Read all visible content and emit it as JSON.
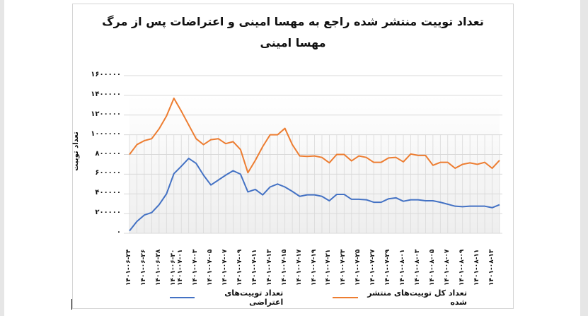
{
  "chart_data": {
    "type": "line",
    "title": "تعداد توییت منتشر شده راجع به مهسا امینی و اعتراضات پس از مرگ مهسا امینی",
    "title_lines": [
      "تعداد توییت منتشر شده راجع به مهسا امینی و اعتراضات پس از مرگ",
      "مهسا امینی"
    ],
    "xlabel": "",
    "ylabel": "تعداد توییت",
    "ylim": [
      0,
      1600000
    ],
    "y_ticks": [
      "۰",
      "۲۰۰۰۰۰",
      "۴۰۰۰۰۰",
      "۶۰۰۰۰۰",
      "۸۰۰۰۰۰",
      "۱۰۰۰۰۰۰",
      "۱۲۰۰۰۰۰",
      "۱۴۰۰۰۰۰",
      "۱۶۰۰۰۰۰"
    ],
    "y_tick_values": [
      0,
      200000,
      400000,
      600000,
      800000,
      1000000,
      1200000,
      1400000,
      1600000
    ],
    "x_tick_labels": [
      "۱۴۰۱-۰۶-۲۴",
      "۱۴۰۱-۰۶-۲۶",
      "۱۴۰۱-۰۶-۲۸",
      "۱۴۰۱-۰۶-۳۰",
      "۱۴۰۱-۰۷-۰۱",
      "۱۴۰۱-۰۷-۰۳",
      "۱۴۰۱-۰۷-۰۵",
      "۱۴۰۱-۰۷-۰۷",
      "۱۴۰۱-۰۷-۰۹",
      "۱۴۰۱-۰۷-۱۱",
      "۱۴۰۱-۰۷-۱۳",
      "۱۴۰۱-۰۷-۱۵",
      "۱۴۰۱-۰۷-۱۷",
      "۱۴۰۱-۰۷-۱۹",
      "۱۴۰۱-۰۷-۲۱",
      "۱۴۰۱-۰۷-۲۳",
      "۱۴۰۱-۰۷-۲۵",
      "۱۴۰۱-۰۷-۲۷",
      "۱۴۰۱-۰۷-۲۹",
      "۱۴۰۱-۰۸-۰۱",
      "۱۴۰۱-۰۸-۰۳",
      "۱۴۰۱-۰۸-۰۵",
      "۱۴۰۱-۰۸-۰۷",
      "۱۴۰۱-۰۸-۰۹",
      "۱۴۰۱-۰۸-۱۱",
      "۱۴۰۱-۰۸-۱۳"
    ],
    "x_tick_indices": [
      0,
      2,
      4,
      6,
      7,
      9,
      11,
      13,
      15,
      17,
      19,
      21,
      23,
      25,
      27,
      29,
      31,
      33,
      35,
      37,
      39,
      41,
      43,
      45,
      47,
      49
    ],
    "x": [
      "1401-06-24",
      "1401-06-25",
      "1401-06-26",
      "1401-06-27",
      "1401-06-28",
      "1401-06-29",
      "1401-06-30",
      "1401-06-31",
      "1401-07-01",
      "1401-07-02",
      "1401-07-03",
      "1401-07-04",
      "1401-07-05",
      "1401-07-06",
      "1401-07-07",
      "1401-07-08",
      "1401-07-09",
      "1401-07-10",
      "1401-07-11",
      "1401-07-12",
      "1401-07-13",
      "1401-07-14",
      "1401-07-15",
      "1401-07-16",
      "1401-07-17",
      "1401-07-18",
      "1401-07-19",
      "1401-07-20",
      "1401-07-21",
      "1401-07-22",
      "1401-07-23",
      "1401-07-24",
      "1401-07-25",
      "1401-07-26",
      "1401-07-27",
      "1401-07-28",
      "1401-07-29",
      "1401-07-30",
      "1401-08-01",
      "1401-08-02",
      "1401-08-03",
      "1401-08-04",
      "1401-08-05",
      "1401-08-06",
      "1401-08-07",
      "1401-08-08",
      "1401-08-09",
      "1401-08-10",
      "1401-08-11",
      "1401-08-12",
      "1401-08-13"
    ],
    "series": [
      {
        "name": "تعداد کل توییت‌های منتشر شده",
        "color": "#ed7d31",
        "values": [
          800000,
          900000,
          940000,
          960000,
          1060000,
          1190000,
          1370000,
          1240000,
          1100000,
          960000,
          900000,
          950000,
          960000,
          910000,
          930000,
          850000,
          615000,
          740000,
          880000,
          1000000,
          1000000,
          1065000,
          900000,
          785000,
          780000,
          785000,
          770000,
          715000,
          800000,
          800000,
          735000,
          785000,
          770000,
          720000,
          720000,
          765000,
          770000,
          725000,
          805000,
          790000,
          790000,
          690000,
          720000,
          720000,
          660000,
          700000,
          715000,
          700000,
          720000,
          660000,
          740000
        ]
      },
      {
        "name": "تعداد توییت‌های اعتراضی",
        "color": "#4472c4",
        "values": [
          25000,
          120000,
          185000,
          210000,
          290000,
          400000,
          605000,
          680000,
          760000,
          710000,
          590000,
          490000,
          540000,
          590000,
          635000,
          600000,
          420000,
          445000,
          390000,
          470000,
          500000,
          470000,
          425000,
          375000,
          390000,
          390000,
          375000,
          330000,
          395000,
          395000,
          345000,
          345000,
          340000,
          315000,
          315000,
          350000,
          360000,
          325000,
          340000,
          340000,
          330000,
          330000,
          315000,
          295000,
          275000,
          270000,
          275000,
          275000,
          275000,
          260000,
          290000
        ]
      }
    ],
    "grid": true,
    "legend_position": "bottom"
  },
  "legend": {
    "total_label": "تعداد کل توییت‌های منتشر شده",
    "protest_label": "تعداد توییت‌های اعتراضی"
  }
}
